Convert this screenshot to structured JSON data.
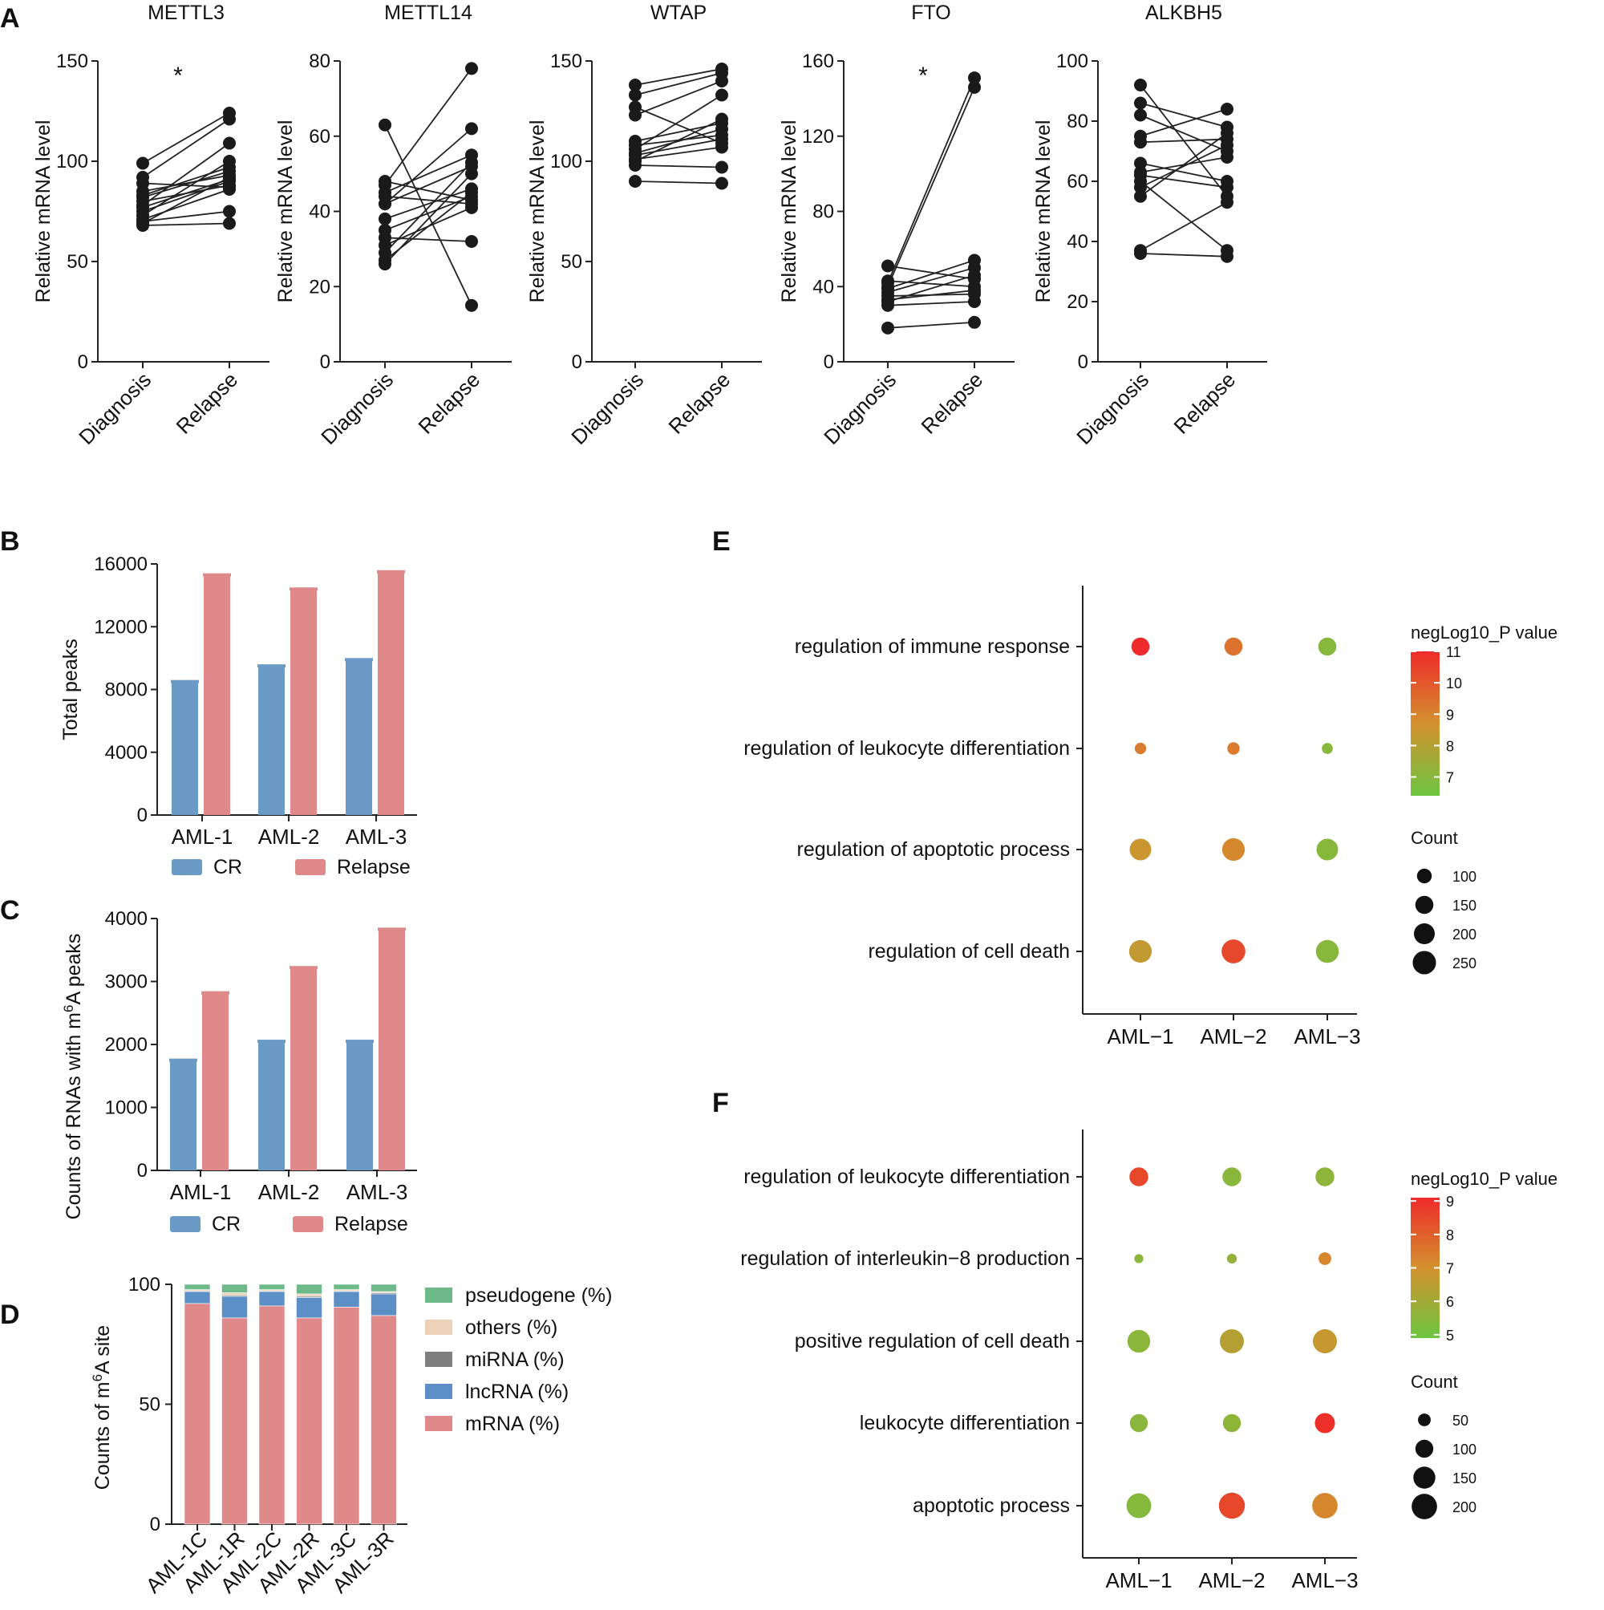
{
  "panels": {
    "A": "A",
    "B": "B",
    "C": "C",
    "D": "D",
    "E": "E",
    "F": "F"
  },
  "colors": {
    "cr": "#6a9ac6",
    "relapse": "#e0898b",
    "mrna": "#e0898b",
    "lncrna": "#5b8fc5",
    "mirna": "#7f7f7f",
    "others": "#ecd2b8",
    "pseudogene": "#6db98a",
    "low": "#6cc540",
    "mid": "#d4912e",
    "high": "#ee2a2a"
  },
  "chart_data": [
    {
      "id": "A1",
      "type": "scatter",
      "title": "METTL3",
      "ylabel": "Relative mRNA level",
      "ylim": [
        0,
        150
      ],
      "yticks": [
        0,
        50,
        100,
        150
      ],
      "categories": [
        "Diagnosis",
        "Relapse"
      ],
      "annotation": "*",
      "pairs": [
        [
          99,
          124
        ],
        [
          92,
          121
        ],
        [
          89,
          87
        ],
        [
          85,
          93
        ],
        [
          83,
          97
        ],
        [
          82,
          95
        ],
        [
          80,
          88
        ],
        [
          78,
          109
        ],
        [
          77,
          91
        ],
        [
          75,
          90
        ],
        [
          73,
          100
        ],
        [
          71,
          86
        ],
        [
          70,
          75
        ],
        [
          69,
          92
        ],
        [
          68,
          69
        ]
      ]
    },
    {
      "id": "A2",
      "type": "scatter",
      "title": "METTL14",
      "ylabel": "Relative mRNA level",
      "ylim": [
        0,
        80
      ],
      "yticks": [
        0,
        20,
        40,
        60,
        80
      ],
      "categories": [
        "Diagnosis",
        "Relapse"
      ],
      "annotation": "",
      "pairs": [
        [
          63,
          15
        ],
        [
          48,
          43
        ],
        [
          47,
          78
        ],
        [
          45,
          55
        ],
        [
          44,
          42
        ],
        [
          42,
          52
        ],
        [
          42,
          62
        ],
        [
          38,
          46
        ],
        [
          35,
          44
        ],
        [
          33,
          32
        ],
        [
          31,
          41
        ],
        [
          29,
          53
        ],
        [
          27,
          45
        ],
        [
          26,
          50
        ]
      ]
    },
    {
      "id": "A3",
      "type": "scatter",
      "title": "WTAP",
      "ylabel": "Relative mRNA level",
      "ylim": [
        0,
        150
      ],
      "yticks": [
        0,
        50,
        100,
        150
      ],
      "categories": [
        "Diagnosis",
        "Relapse"
      ],
      "annotation": "",
      "pairs": [
        [
          138,
          146
        ],
        [
          133,
          144
        ],
        [
          127,
          109
        ],
        [
          123,
          140
        ],
        [
          110,
          119
        ],
        [
          108,
          113
        ],
        [
          106,
          133
        ],
        [
          104,
          116
        ],
        [
          103,
          111
        ],
        [
          101,
          107
        ],
        [
          100,
          121
        ],
        [
          98,
          97
        ],
        [
          90,
          89
        ]
      ]
    },
    {
      "id": "A4",
      "type": "scatter",
      "title": "FTO",
      "ylabel": "Relative mRNA level",
      "ylim": [
        0,
        160
      ],
      "yticks": [
        0,
        40,
        80,
        120,
        160
      ],
      "categories": [
        "Diagnosis",
        "Relapse"
      ],
      "annotation": "*",
      "pairs": [
        [
          51,
          44
        ],
        [
          43,
          40
        ],
        [
          42,
          151
        ],
        [
          40,
          146
        ],
        [
          39,
          54
        ],
        [
          37,
          50
        ],
        [
          35,
          36
        ],
        [
          33,
          38
        ],
        [
          32,
          46
        ],
        [
          30,
          32
        ],
        [
          18,
          21
        ]
      ]
    },
    {
      "id": "A5",
      "type": "scatter",
      "title": "ALKBH5",
      "ylabel": "Relative mRNA level",
      "ylim": [
        0,
        100
      ],
      "yticks": [
        0,
        20,
        40,
        60,
        80,
        100
      ],
      "categories": [
        "Diagnosis",
        "Relapse"
      ],
      "annotation": "",
      "pairs": [
        [
          92,
          55
        ],
        [
          86,
          78
        ],
        [
          82,
          70
        ],
        [
          75,
          84
        ],
        [
          73,
          74
        ],
        [
          66,
          60
        ],
        [
          63,
          68
        ],
        [
          62,
          58
        ],
        [
          60,
          37
        ],
        [
          58,
          72
        ],
        [
          55,
          76
        ],
        [
          37,
          53
        ],
        [
          36,
          35
        ]
      ]
    },
    {
      "id": "B",
      "type": "bar",
      "title": "",
      "ylabel": "Total peaks",
      "ylim": [
        0,
        16000
      ],
      "yticks": [
        0,
        4000,
        8000,
        12000,
        16000
      ],
      "categories": [
        "AML-1",
        "AML-2",
        "AML-3"
      ],
      "series": [
        {
          "name": "CR",
          "values": [
            8500,
            9500,
            9900
          ]
        },
        {
          "name": "Relapse",
          "values": [
            15300,
            14400,
            15500
          ]
        }
      ]
    },
    {
      "id": "C",
      "type": "bar",
      "title": "",
      "ylabel_parts": [
        "Counts of RNAs with m",
        "6",
        "A peaks"
      ],
      "ylim": [
        0,
        4000
      ],
      "yticks": [
        0,
        1000,
        2000,
        3000,
        4000
      ],
      "categories": [
        "AML-1",
        "AML-2",
        "AML-3"
      ],
      "series": [
        {
          "name": "CR",
          "values": [
            1750,
            2050,
            2050
          ]
        },
        {
          "name": "Relapse",
          "values": [
            2820,
            3220,
            3830
          ]
        }
      ]
    },
    {
      "id": "D",
      "type": "bar",
      "title": "",
      "ylabel_parts": [
        "Counts of m",
        "6",
        "A site"
      ],
      "ylim": [
        0,
        100
      ],
      "yticks": [
        0,
        50,
        100
      ],
      "categories": [
        "AML-1C",
        "AML-1R",
        "AML-2C",
        "AML-2R",
        "AML-3C",
        "AML-3R"
      ],
      "series": [
        {
          "name": "mRNA (%)",
          "values": [
            92,
            86,
            91,
            86,
            90.5,
            87
          ]
        },
        {
          "name": "lncRNA (%)",
          "values": [
            5,
            9,
            6,
            8.5,
            6.5,
            9
          ]
        },
        {
          "name": "miRNA (%)",
          "values": [
            0.3,
            0.5,
            0.3,
            0.5,
            0.3,
            0.5
          ]
        },
        {
          "name": "others (%)",
          "values": [
            0.5,
            1,
            0.5,
            1,
            0.5,
            0.5
          ]
        },
        {
          "name": "pseudogene (%)",
          "values": [
            2.2,
            3.5,
            2.2,
            4,
            2.2,
            3
          ]
        }
      ],
      "legend_order": [
        "pseudogene (%)",
        "others (%)",
        "miRNA (%)",
        "lncRNA (%)",
        "mRNA (%)"
      ]
    },
    {
      "id": "E",
      "type": "scatter",
      "title": "",
      "categories": [
        "AML−1",
        "AML−2",
        "AML−3"
      ],
      "terms": [
        "regulation of immune response",
        "regulation of leukocyte differentiation",
        "regulation of apoptotic process",
        "regulation of cell death"
      ],
      "color_title": "negLog10_P value",
      "color_range": [
        6.4,
        11
      ],
      "color_ticks": [
        7,
        8,
        9,
        10,
        11
      ],
      "size_title": "Count",
      "size_legend": [
        100,
        150,
        200,
        250
      ],
      "points": [
        {
          "term": 0,
          "cat": 0,
          "count": 150,
          "value": 11
        },
        {
          "term": 0,
          "cat": 1,
          "count": 150,
          "value": 9.4
        },
        {
          "term": 0,
          "cat": 2,
          "count": 150,
          "value": 7
        },
        {
          "term": 1,
          "cat": 0,
          "count": 60,
          "value": 9.2
        },
        {
          "term": 1,
          "cat": 1,
          "count": 70,
          "value": 9.2
        },
        {
          "term": 1,
          "cat": 2,
          "count": 55,
          "value": 7
        },
        {
          "term": 2,
          "cat": 0,
          "count": 215,
          "value": 8.5
        },
        {
          "term": 2,
          "cat": 1,
          "count": 235,
          "value": 8.9
        },
        {
          "term": 2,
          "cat": 2,
          "count": 215,
          "value": 7
        },
        {
          "term": 3,
          "cat": 0,
          "count": 235,
          "value": 8.3
        },
        {
          "term": 3,
          "cat": 1,
          "count": 260,
          "value": 10.3
        },
        {
          "term": 3,
          "cat": 2,
          "count": 240,
          "value": 7
        }
      ]
    },
    {
      "id": "F",
      "type": "scatter",
      "title": "",
      "categories": [
        "AML−1",
        "AML−2",
        "AML−3"
      ],
      "terms": [
        "regulation of leukocyte differentiation",
        "regulation of interleukin−8 production",
        "positive regulation of cell death",
        "leukocyte differentiation",
        "apoptotic process"
      ],
      "color_title": "negLog10_P value",
      "color_range": [
        4.9,
        9.1
      ],
      "color_ticks": [
        5,
        6,
        7,
        8,
        9
      ],
      "size_title": "Count",
      "size_legend": [
        50,
        100,
        150,
        200
      ],
      "points": [
        {
          "term": 0,
          "cat": 0,
          "count": 110,
          "value": 8.5
        },
        {
          "term": 0,
          "cat": 1,
          "count": 110,
          "value": 5.5
        },
        {
          "term": 0,
          "cat": 2,
          "count": 110,
          "value": 5.6
        },
        {
          "term": 1,
          "cat": 0,
          "count": 25,
          "value": 5.5
        },
        {
          "term": 1,
          "cat": 1,
          "count": 30,
          "value": 5.7
        },
        {
          "term": 1,
          "cat": 2,
          "count": 50,
          "value": 7.2
        },
        {
          "term": 2,
          "cat": 0,
          "count": 160,
          "value": 5.5
        },
        {
          "term": 2,
          "cat": 1,
          "count": 180,
          "value": 6.4
        },
        {
          "term": 2,
          "cat": 2,
          "count": 180,
          "value": 6.7
        },
        {
          "term": 3,
          "cat": 0,
          "count": 100,
          "value": 5.5
        },
        {
          "term": 3,
          "cat": 1,
          "count": 100,
          "value": 5.6
        },
        {
          "term": 3,
          "cat": 2,
          "count": 125,
          "value": 9
        },
        {
          "term": 4,
          "cat": 0,
          "count": 190,
          "value": 5.4
        },
        {
          "term": 4,
          "cat": 1,
          "count": 210,
          "value": 8.5
        },
        {
          "term": 4,
          "cat": 2,
          "count": 200,
          "value": 7.2
        }
      ]
    }
  ]
}
